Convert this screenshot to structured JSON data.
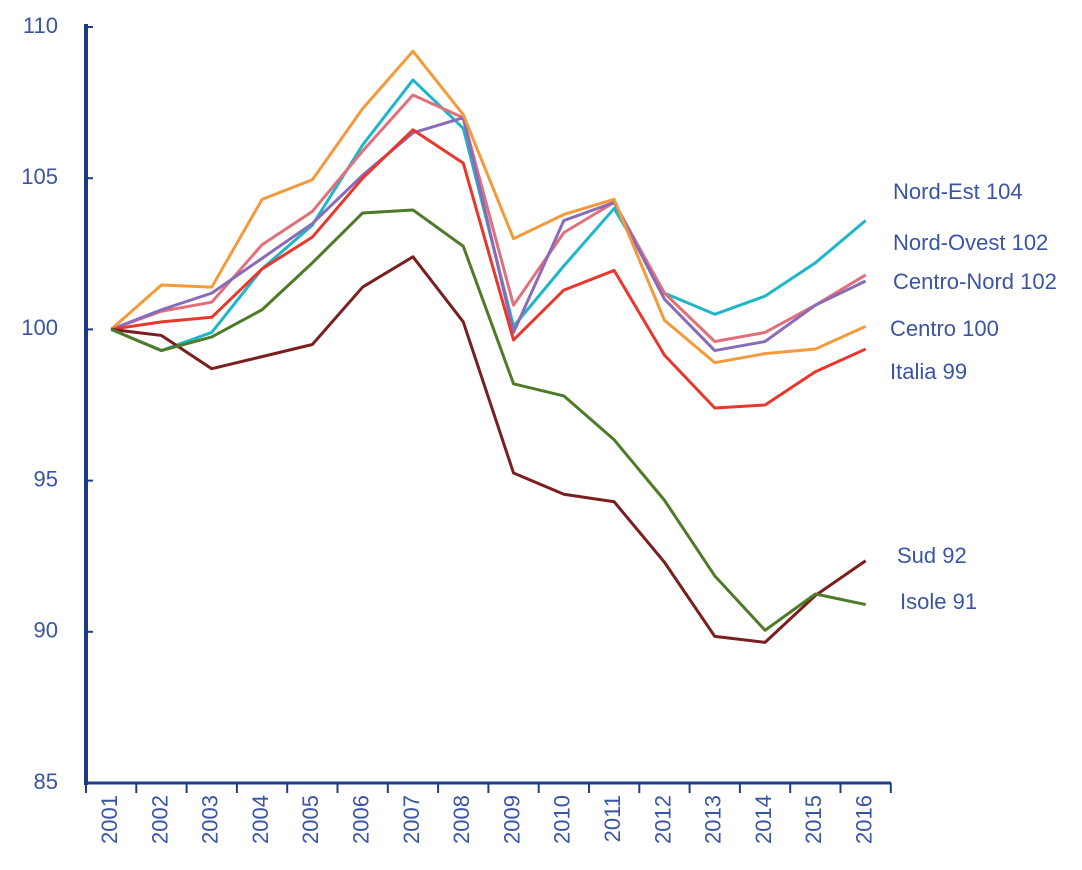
{
  "chart_data": {
    "type": "line",
    "categories": [
      "2001",
      "2002",
      "2003",
      "2004",
      "2005",
      "2006",
      "2007",
      "2008",
      "2009",
      "2010",
      "2011",
      "2012",
      "2013",
      "2014",
      "2015",
      "2016"
    ],
    "ylim": [
      85,
      110
    ],
    "yticks": [
      85,
      90,
      95,
      100,
      105,
      110
    ],
    "series": [
      {
        "name": "Nord-Est 104",
        "color": "#1fb6c9",
        "label_color": "#3a54a4",
        "values": [
          100,
          99.3,
          99.9,
          102.0,
          103.45,
          106.1,
          108.25,
          106.65,
          100.1,
          102.1,
          104.0,
          101.2,
          100.5,
          101.1,
          102.2,
          103.6
        ]
      },
      {
        "name": "Nord-Ovest 102",
        "color": "#e0707a",
        "label_color": "#3a54a4",
        "values": [
          100,
          100.6,
          100.9,
          102.8,
          103.9,
          105.9,
          107.75,
          107.0,
          100.8,
          103.2,
          104.2,
          101.2,
          99.6,
          99.9,
          100.8,
          101.8
        ]
      },
      {
        "name": "Centro-Nord 102",
        "color": "#8a6bb8",
        "label_color": "#3a54a4",
        "values": [
          100,
          100.65,
          101.2,
          102.35,
          103.5,
          105.1,
          106.5,
          107.0,
          99.9,
          103.6,
          104.2,
          101.0,
          99.3,
          99.6,
          100.8,
          101.6
        ]
      },
      {
        "name": "Centro 100",
        "color": "#f59a3c",
        "label_color": "#3a54a4",
        "values": [
          100,
          101.47,
          101.4,
          104.3,
          104.95,
          107.3,
          109.2,
          107.1,
          103.0,
          103.8,
          104.3,
          100.3,
          98.9,
          99.2,
          99.35,
          100.1
        ]
      },
      {
        "name": "Italia 99",
        "color": "#e8372c",
        "label_color": "#e8372c",
        "values": [
          100,
          100.25,
          100.4,
          102.0,
          103.05,
          105.0,
          106.6,
          105.5,
          99.65,
          101.3,
          101.95,
          99.15,
          97.4,
          97.5,
          98.6,
          99.35
        ]
      },
      {
        "name": "Sud 92",
        "color": "#7a1f1f",
        "label_color": "#3a54a4",
        "values": [
          100,
          99.8,
          98.7,
          99.1,
          99.5,
          101.4,
          102.4,
          100.25,
          95.25,
          94.55,
          94.3,
          92.3,
          89.85,
          89.65,
          91.2,
          92.35
        ]
      },
      {
        "name": "Isole 91",
        "color": "#4f7a28",
        "label_color": "#3a54a4",
        "values": [
          100,
          99.3,
          99.75,
          100.65,
          102.2,
          103.85,
          103.95,
          102.75,
          98.2,
          97.8,
          96.35,
          94.35,
          91.85,
          90.05,
          91.25,
          90.9
        ]
      }
    ]
  }
}
